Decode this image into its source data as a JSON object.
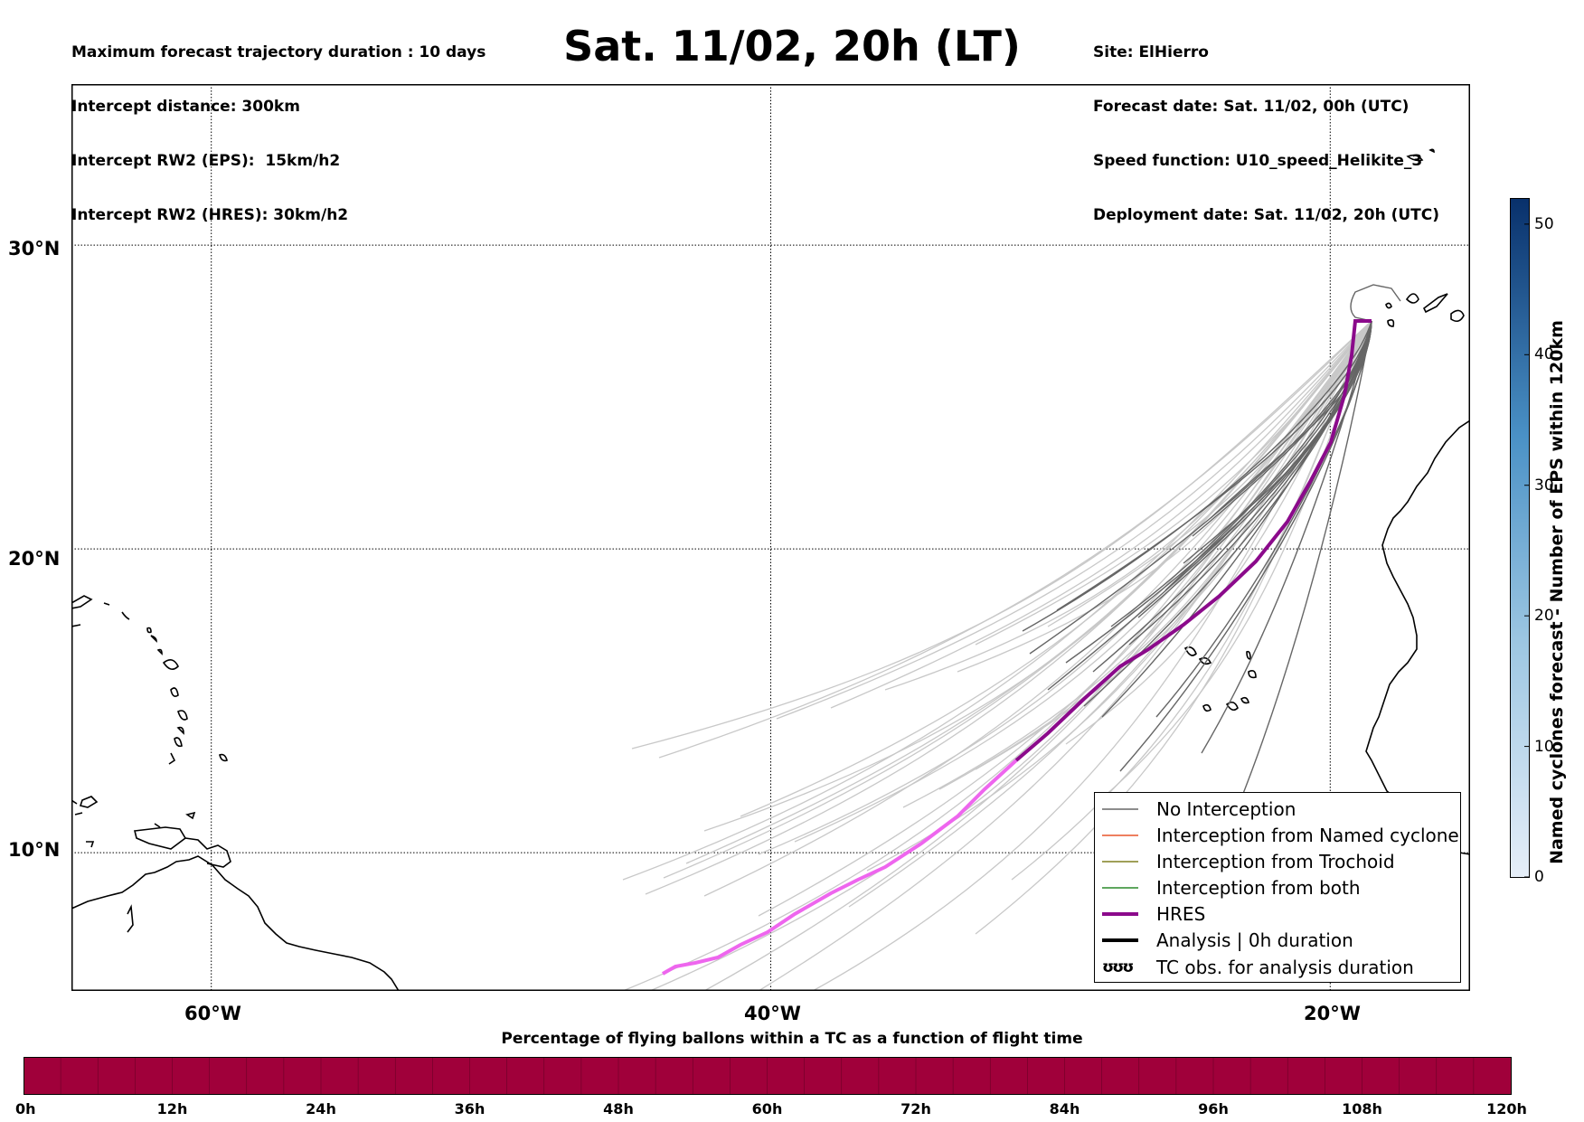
{
  "header_left": [
    "Maximum forecast trajectory duration : 10 days",
    "Intercept distance: 300km",
    "Intercept RW2 (EPS):  15km/h2",
    "Intercept RW2 (HRES): 30km/h2"
  ],
  "title": "Sat. 11/02, 20h (LT)",
  "header_right": [
    "Site: ElHierro",
    "Forecast date: Sat. 11/02, 00h (UTC)",
    "Speed function: U10_speed_Helikite_3",
    "Deployment date: Sat. 11/02, 20h (UTC)"
  ],
  "map": {
    "lat_labels": [
      "30°N",
      "20°N",
      "10°N"
    ],
    "lon_labels": [
      "60°W",
      "40°W",
      "20°W"
    ],
    "lat_lines": [
      30,
      20,
      10
    ],
    "lon_lines": [
      -60,
      -40,
      -20
    ],
    "extent": {
      "lon_min": -65,
      "lon_max": -15,
      "lat_min": 5.45,
      "lat_max": 35.3
    },
    "colors": {
      "no_interception": "#666666",
      "no_interception_late": "#c8c8c8",
      "named_cyclone": "#e8552a",
      "trochoid": "#808020",
      "both": "#2a8a2a",
      "hres": "#8b0a8b",
      "hres_late": "#ee66ee",
      "analysis": "#000000"
    },
    "site": {
      "name": "ElHierro",
      "lon": -18.0,
      "lat": 27.7
    }
  },
  "legend": [
    {
      "label": "No Interception",
      "style": "no_interception"
    },
    {
      "label": "Interception from Named cyclone",
      "style": "named_cyclone"
    },
    {
      "label": "Interception from Trochoid",
      "style": "trochoid"
    },
    {
      "label": "Interception from both",
      "style": "both"
    },
    {
      "label": "HRES",
      "style": "hres"
    },
    {
      "label": "Analysis | 0h duration",
      "style": "analysis"
    },
    {
      "label": "TC obs. for analysis duration",
      "style": "tc_symbol",
      "symbol": "ʊʊʊ"
    }
  ],
  "colorbar_right": {
    "title": "Named cyclones forecast - Number of EPS within 120km",
    "ticks": [
      "0",
      "10",
      "20",
      "30",
      "40",
      "50"
    ],
    "tick_values": [
      0,
      10,
      20,
      30,
      40,
      50
    ],
    "min": 0,
    "max": 52,
    "color_low": "#e6eef8",
    "color_high": "#08306b"
  },
  "colorbar_bottom": {
    "title": "Percentage of flying ballons within a TC as a function of flight time",
    "ticks": [
      "0h",
      "12h",
      "24h",
      "36h",
      "48h",
      "60h",
      "72h",
      "84h",
      "96h",
      "108h",
      "120h"
    ],
    "fill_color": "#a0003a"
  }
}
